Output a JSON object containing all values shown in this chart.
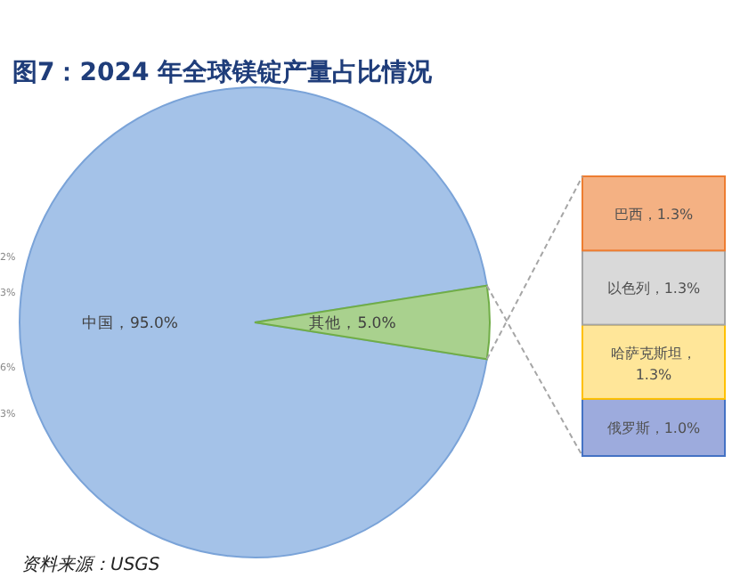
{
  "chart_data": [
    {
      "type": "pie",
      "title": "图7：2024 年全球镁锭产量占比情况",
      "categories": [
        "中国",
        "其他"
      ],
      "values": [
        95.0,
        5.0
      ],
      "colors": [
        "#a4c2e8",
        "#a9d18e"
      ],
      "value_labels": [
        "95.0%",
        "5.0%"
      ],
      "annotations": [
        "2%",
        "3%",
        "6%",
        "3%",
        "资料来源：USGS"
      ]
    },
    {
      "type": "bar",
      "stacked": true,
      "categories": [
        null
      ],
      "series": [
        {
          "color": "#9dabdd",
          "values": [
            1.0
          ],
          "value_labels": [
            "俄罗斯，1.0%"
          ]
        },
        {
          "color": "#ffe699",
          "values": [
            1.3
          ],
          "value_labels": [
            "哈萨克斯坦，1.3%"
          ]
        },
        {
          "color": "#d9d9d9",
          "values": [
            1.3
          ],
          "value_labels": [
            "以色列，1.3%"
          ]
        },
        {
          "color": "#f4b183",
          "values": [
            1.3
          ],
          "value_labels": [
            "巴西，1.3%"
          ]
        }
      ]
    }
  ]
}
